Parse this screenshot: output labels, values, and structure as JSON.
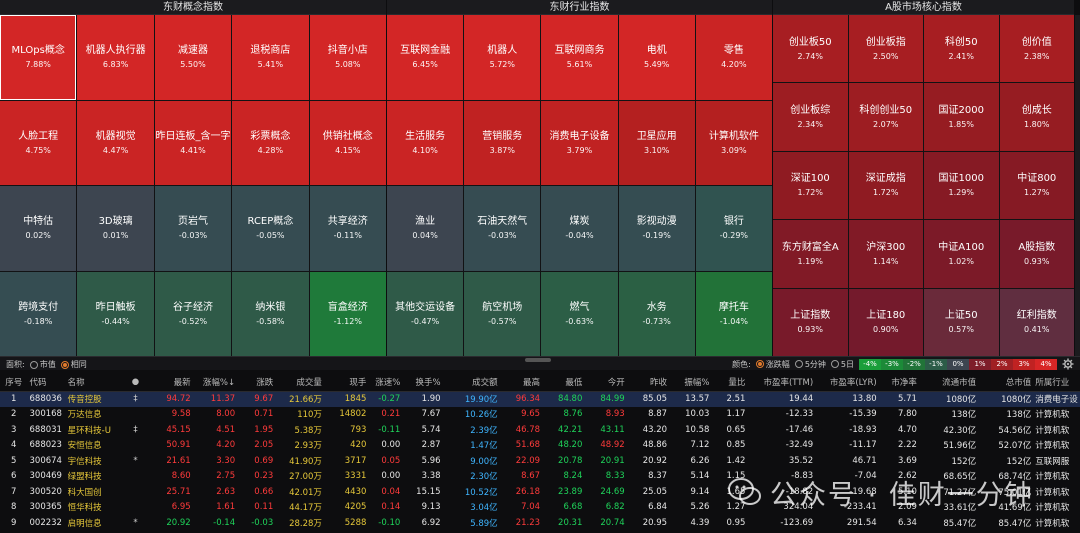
{
  "panels": [
    {
      "id": "concept",
      "title": "东财概念指数",
      "cols": 5,
      "tiles": [
        {
          "name": "MLOps概念",
          "pct": "7.88%",
          "color": "#d32626",
          "selected": true
        },
        {
          "name": "机器人执行器",
          "pct": "6.83%",
          "color": "#d32626"
        },
        {
          "name": "减速器",
          "pct": "5.50%",
          "color": "#d32626"
        },
        {
          "name": "退税商店",
          "pct": "5.41%",
          "color": "#d32626"
        },
        {
          "name": "抖音小店",
          "pct": "5.08%",
          "color": "#d32626"
        },
        {
          "name": "人脸工程",
          "pct": "4.75%",
          "color": "#ca2424"
        },
        {
          "name": "机器视觉",
          "pct": "4.47%",
          "color": "#ca2424"
        },
        {
          "name": "昨日连板_含一字",
          "pct": "4.41%",
          "color": "#ca2424"
        },
        {
          "name": "彩票概念",
          "pct": "4.28%",
          "color": "#ca2424"
        },
        {
          "name": "供销社概念",
          "pct": "4.15%",
          "color": "#ca2424"
        },
        {
          "name": "中特估",
          "pct": "0.02%",
          "color": "#3d4550"
        },
        {
          "name": "3D玻璃",
          "pct": "0.01%",
          "color": "#3d4550"
        },
        {
          "name": "页岩气",
          "pct": "-0.03%",
          "color": "#364c52"
        },
        {
          "name": "RCEP概念",
          "pct": "-0.05%",
          "color": "#364c52"
        },
        {
          "name": "共享经济",
          "pct": "-0.11%",
          "color": "#364c52"
        },
        {
          "name": "跨境支付",
          "pct": "-0.18%",
          "color": "#354d52"
        },
        {
          "name": "昨日触板",
          "pct": "-0.44%",
          "color": "#2f5a48"
        },
        {
          "name": "谷子经济",
          "pct": "-0.52%",
          "color": "#2f5a48"
        },
        {
          "name": "纳米银",
          "pct": "-0.58%",
          "color": "#2f5a48"
        },
        {
          "name": "盲盒经济",
          "pct": "-1.12%",
          "color": "#1f7a3a"
        }
      ]
    },
    {
      "id": "industry",
      "title": "东财行业指数",
      "cols": 5,
      "tiles": [
        {
          "name": "互联网金融",
          "pct": "6.45%",
          "color": "#d32626"
        },
        {
          "name": "机器人",
          "pct": "5.72%",
          "color": "#d32626"
        },
        {
          "name": "互联网商务",
          "pct": "5.61%",
          "color": "#d32626"
        },
        {
          "name": "电机",
          "pct": "5.49%",
          "color": "#d32626"
        },
        {
          "name": "零售",
          "pct": "4.20%",
          "color": "#ca2424"
        },
        {
          "name": "生活服务",
          "pct": "4.10%",
          "color": "#ca2424"
        },
        {
          "name": "营销服务",
          "pct": "3.87%",
          "color": "#c02222"
        },
        {
          "name": "消费电子设备",
          "pct": "3.79%",
          "color": "#c02222"
        },
        {
          "name": "卫星应用",
          "pct": "3.10%",
          "color": "#b42020"
        },
        {
          "name": "计算机软件",
          "pct": "3.09%",
          "color": "#b42020"
        },
        {
          "name": "渔业",
          "pct": "0.04%",
          "color": "#3d4550"
        },
        {
          "name": "石油天然气",
          "pct": "-0.03%",
          "color": "#364c52"
        },
        {
          "name": "煤炭",
          "pct": "-0.04%",
          "color": "#364c52"
        },
        {
          "name": "影视动漫",
          "pct": "-0.19%",
          "color": "#354d52"
        },
        {
          "name": "银行",
          "pct": "-0.29%",
          "color": "#305350"
        },
        {
          "name": "其他交运设备",
          "pct": "-0.47%",
          "color": "#2f5a48"
        },
        {
          "name": "航空机场",
          "pct": "-0.57%",
          "color": "#2f5a48"
        },
        {
          "name": "燃气",
          "pct": "-0.63%",
          "color": "#2c5e46"
        },
        {
          "name": "水务",
          "pct": "-0.73%",
          "color": "#2b6044"
        },
        {
          "name": "摩托车",
          "pct": "-1.04%",
          "color": "#227238"
        }
      ]
    },
    {
      "id": "core",
      "title": "A股市场核心指数",
      "cols": 4,
      "tiles": [
        {
          "name": "创业板50",
          "pct": "2.74%",
          "color": "#a71e22"
        },
        {
          "name": "创业板指",
          "pct": "2.50%",
          "color": "#a71e22"
        },
        {
          "name": "科创50",
          "pct": "2.41%",
          "color": "#a71e22"
        },
        {
          "name": "创价值",
          "pct": "2.38%",
          "color": "#a71e22"
        },
        {
          "name": "创业板综",
          "pct": "2.34%",
          "color": "#9d1d22"
        },
        {
          "name": "科创创业50",
          "pct": "2.07%",
          "color": "#9d1d22"
        },
        {
          "name": "国证2000",
          "pct": "1.85%",
          "color": "#961c22"
        },
        {
          "name": "创成长",
          "pct": "1.80%",
          "color": "#961c22"
        },
        {
          "name": "深证100",
          "pct": "1.72%",
          "color": "#8f1b22"
        },
        {
          "name": "深证成指",
          "pct": "1.72%",
          "color": "#8f1b22"
        },
        {
          "name": "国证1000",
          "pct": "1.29%",
          "color": "#861a24"
        },
        {
          "name": "中证800",
          "pct": "1.27%",
          "color": "#861a24"
        },
        {
          "name": "东方财富全A",
          "pct": "1.19%",
          "color": "#811a26"
        },
        {
          "name": "沪深300",
          "pct": "1.14%",
          "color": "#811a26"
        },
        {
          "name": "中证A100",
          "pct": "1.02%",
          "color": "#7c1a28"
        },
        {
          "name": "A股指数",
          "pct": "0.93%",
          "color": "#781a2a"
        },
        {
          "name": "上证指数",
          "pct": "0.93%",
          "color": "#781a2a"
        },
        {
          "name": "上证180",
          "pct": "0.90%",
          "color": "#741a2c"
        },
        {
          "name": "上证50",
          "pct": "0.57%",
          "color": "#6a2a3a"
        },
        {
          "name": "红利指数",
          "pct": "0.41%",
          "color": "#602e40"
        }
      ]
    }
  ],
  "statusbar": {
    "area_label": "面积:",
    "area_options": [
      {
        "label": "市值",
        "on": false
      },
      {
        "label": "相同",
        "on": true
      }
    ],
    "color_label": "颜色:",
    "color_options": [
      {
        "label": "涨跌幅",
        "on": true
      },
      {
        "label": "5分钟",
        "on": false
      },
      {
        "label": "5日",
        "on": false
      }
    ],
    "legend": [
      {
        "label": "-4%",
        "color": "#1a9e3a"
      },
      {
        "label": "-3%",
        "color": "#1c8a38"
      },
      {
        "label": "-2%",
        "color": "#217438"
      },
      {
        "label": "-1%",
        "color": "#2c5c48"
      },
      {
        "label": "0%",
        "color": "#3d4550"
      },
      {
        "label": "1%",
        "color": "#7e1e2a"
      },
      {
        "label": "2%",
        "color": "#a02024"
      },
      {
        "label": "3%",
        "color": "#c02222"
      },
      {
        "label": "4%",
        "color": "#d82626"
      }
    ]
  },
  "table": {
    "columns": [
      "序号",
      "代码",
      "名称",
      "●",
      "最新",
      "涨幅%↓",
      "涨跌",
      "成交量",
      "现手",
      "涨速%",
      "换手%",
      "成交额",
      "最高",
      "最低",
      "今开",
      "昨收",
      "振幅%",
      "量比",
      "市盈率(TTM)",
      "市盈率(LYR)",
      "市净率",
      "流通市值",
      "总市值",
      "所属行业"
    ],
    "rows": [
      {
        "no": "1",
        "code": "688036",
        "name": "传音控股",
        "mark": "‡",
        "last": "94.72",
        "pct": "11.37",
        "chg": "9.67",
        "vol": "21.66万",
        "hand": "1845",
        "speed": "-0.27",
        "turnover": "1.90",
        "amount": "19.90亿",
        "high": "96.34",
        "low": "84.80",
        "open": "84.99",
        "prev": "85.05",
        "amp": "13.57",
        "qr": "2.51",
        "pe_ttm": "19.44",
        "pe_lyr": "13.80",
        "pb": "5.71",
        "float_cap": "1080亿",
        "total_cap": "1080亿",
        "industry": "消费电子设"
      },
      {
        "no": "2",
        "code": "300168",
        "name": "万达信息",
        "mark": "",
        "last": "9.58",
        "pct": "8.00",
        "chg": "0.71",
        "vol": "110万",
        "hand": "14802",
        "speed": "0.21",
        "turnover": "7.67",
        "amount": "10.26亿",
        "high": "9.65",
        "low": "8.76",
        "open": "8.93",
        "prev": "8.87",
        "amp": "10.03",
        "qr": "1.17",
        "pe_ttm": "-12.33",
        "pe_lyr": "-15.39",
        "pb": "7.80",
        "float_cap": "138亿",
        "total_cap": "138亿",
        "industry": "计算机软"
      },
      {
        "no": "3",
        "code": "688031",
        "name": "星环科技-U",
        "mark": "‡",
        "last": "45.15",
        "pct": "4.51",
        "chg": "1.95",
        "vol": "5.38万",
        "hand": "793",
        "speed": "-0.11",
        "turnover": "5.74",
        "amount": "2.39亿",
        "high": "46.78",
        "low": "42.21",
        "open": "43.11",
        "prev": "43.20",
        "amp": "10.58",
        "qr": "0.65",
        "pe_ttm": "-17.46",
        "pe_lyr": "-18.93",
        "pb": "4.70",
        "float_cap": "42.30亿",
        "total_cap": "54.56亿",
        "industry": "计算机软"
      },
      {
        "no": "4",
        "code": "688023",
        "name": "安恒信息",
        "mark": "",
        "last": "50.91",
        "pct": "4.20",
        "chg": "2.05",
        "vol": "2.93万",
        "hand": "420",
        "speed": "0.00",
        "turnover": "2.87",
        "amount": "1.47亿",
        "high": "51.68",
        "low": "48.20",
        "open": "48.92",
        "prev": "48.86",
        "amp": "7.12",
        "qr": "0.85",
        "pe_ttm": "-32.49",
        "pe_lyr": "-11.17",
        "pb": "2.22",
        "float_cap": "51.96亿",
        "total_cap": "52.07亿",
        "industry": "计算机软"
      },
      {
        "no": "5",
        "code": "300674",
        "name": "宇信科技",
        "mark": "*",
        "last": "21.61",
        "pct": "3.30",
        "chg": "0.69",
        "vol": "41.90万",
        "hand": "3717",
        "speed": "0.05",
        "turnover": "5.96",
        "amount": "9.00亿",
        "high": "22.09",
        "low": "20.78",
        "open": "20.91",
        "prev": "20.92",
        "amp": "6.26",
        "qr": "1.42",
        "pe_ttm": "35.52",
        "pe_lyr": "46.71",
        "pb": "3.69",
        "float_cap": "152亿",
        "total_cap": "152亿",
        "industry": "互联网服"
      },
      {
        "no": "6",
        "code": "300469",
        "name": "绿盟科技",
        "mark": "",
        "last": "8.60",
        "pct": "2.75",
        "chg": "0.23",
        "vol": "27.00万",
        "hand": "3331",
        "speed": "0.00",
        "turnover": "3.38",
        "amount": "2.30亿",
        "high": "8.67",
        "low": "8.24",
        "open": "8.33",
        "prev": "8.37",
        "amp": "5.14",
        "qr": "1.15",
        "pe_ttm": "-8.83",
        "pe_lyr": "-7.04",
        "pb": "2.62",
        "float_cap": "68.65亿",
        "total_cap": "68.74亿",
        "industry": "计算机软"
      },
      {
        "no": "7",
        "code": "300520",
        "name": "科大国创",
        "mark": "",
        "last": "25.71",
        "pct": "2.63",
        "chg": "0.66",
        "vol": "42.01万",
        "hand": "4430",
        "speed": "0.04",
        "turnover": "15.15",
        "amount": "10.52亿",
        "high": "26.18",
        "low": "23.89",
        "open": "24.69",
        "prev": "25.05",
        "amp": "9.14",
        "qr": "1.65",
        "pe_ttm": "-18.82",
        "pe_lyr": "-19.68",
        "pb": "5.10",
        "float_cap": "71.27亿",
        "total_cap": "75.01亿",
        "industry": "计算机软"
      },
      {
        "no": "8",
        "code": "300365",
        "name": "恒华科技",
        "mark": "",
        "last": "6.95",
        "pct": "1.61",
        "chg": "0.11",
        "vol": "44.17万",
        "hand": "4205",
        "speed": "0.14",
        "turnover": "9.13",
        "amount": "3.04亿",
        "high": "7.04",
        "low": "6.68",
        "open": "6.82",
        "prev": "6.84",
        "amp": "5.26",
        "qr": "1.27",
        "pe_ttm": "324.04",
        "pe_lyr": "-233.41",
        "pb": "2.09",
        "float_cap": "33.61亿",
        "total_cap": "41.69亿",
        "industry": "计算机软"
      },
      {
        "no": "9",
        "code": "002232",
        "name": "启明信息",
        "mark": "*",
        "last": "20.92",
        "pct": "-0.14",
        "chg": "-0.03",
        "vol": "28.28万",
        "hand": "5288",
        "speed": "-0.10",
        "turnover": "6.92",
        "amount": "5.89亿",
        "high": "21.23",
        "low": "20.31",
        "open": "20.74",
        "prev": "20.95",
        "amp": "4.39",
        "qr": "0.95",
        "pe_ttm": "-123.69",
        "pe_lyr": "291.54",
        "pb": "6.34",
        "float_cap": "85.47亿",
        "total_cap": "85.47亿",
        "industry": "计算机软"
      }
    ]
  },
  "watermark": {
    "text": "公众号 · 佳财一分钟",
    "icon": "wechat-icon"
  }
}
